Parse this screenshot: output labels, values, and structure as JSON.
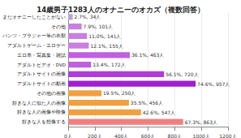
{
  "chart_data": {
    "type": "bar",
    "orientation": "horizontal",
    "title": "14歳男子1283人のオナニーのオカズ（複数回答）",
    "categories": [
      "まだオナニーしたことがない",
      "その他",
      "パンツ・ブラジャー等の衣類",
      "アダルトゲーム・エロゲー",
      "エロ本・写真集・雑誌",
      "アダルトビデオ・DVD",
      "アダルトサイトの画像",
      "アダルトサイトの動画",
      "その他の画像",
      "好きな人に似た人の画像",
      "好きな人の画像や映像",
      "好きな人を想像する"
    ],
    "values": [
      34,
      101,
      141,
      155,
      463,
      172,
      720,
      957,
      250,
      456,
      547,
      863
    ],
    "value_labels": [
      "2.7%, 34人",
      "7.9%, 101人",
      "11.0%, 141人",
      "12.1%, 155人",
      "36.1%, 463人",
      "13.4%, 172人",
      "56.1%, 720人",
      "74.6%, 957人",
      "19.5%, 250人",
      "35.5%, 456人",
      "42.6%, 547人",
      "67.3%, 863人"
    ],
    "colors": [
      "#b7a6d6",
      "#c77fe0",
      "#c77fe0",
      "#c77fe0",
      "#c060e0",
      "#c060e0",
      "#b03cd8",
      "#a020d0",
      "#f0a040",
      "#f0a040",
      "#f0a040",
      "#f08080"
    ],
    "data_labels": true,
    "xlim": [
      0,
      1200
    ],
    "xticks": [
      {
        "value": 0,
        "label": "0人"
      },
      {
        "value": 200,
        "label": "200人"
      },
      {
        "value": 400,
        "label": "400人"
      },
      {
        "value": 600,
        "label": "600人"
      },
      {
        "value": 800,
        "label": "800人"
      },
      {
        "value": 1000,
        "label": "1000人"
      },
      {
        "value": 1200,
        "label": "1200人"
      }
    ],
    "grid": true
  }
}
